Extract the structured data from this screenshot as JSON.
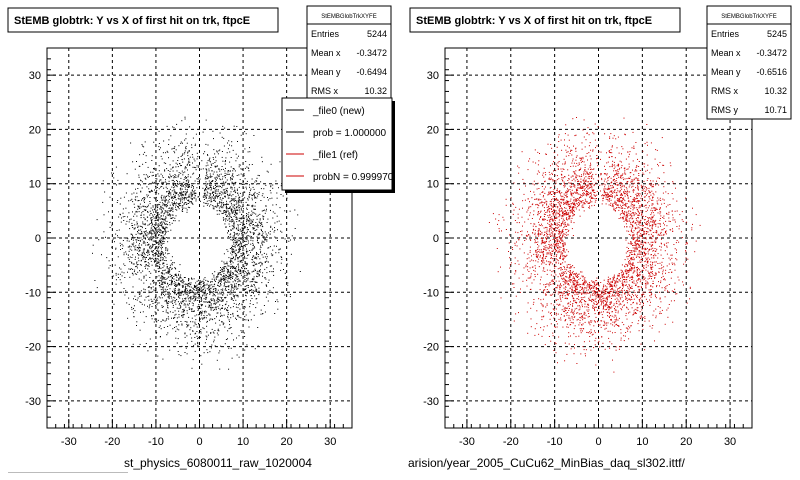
{
  "chart_data": [
    {
      "type": "scatter",
      "title": "StEMB globtrk: Y vs X of first hit on trk, ftpcE",
      "stats": {
        "header": "StEMBGlobTrkXYFE",
        "rows": [
          {
            "label": "Entries",
            "value": "5244"
          },
          {
            "label": "Mean x",
            "value": "-0.3472"
          },
          {
            "label": "Mean y",
            "value": "-0.6494"
          },
          {
            "label": "RMS x",
            "value": "10.32"
          },
          {
            "label": "RMS y",
            "value": "10.71"
          }
        ]
      },
      "legend": [
        {
          "label": "_file0 (new)",
          "color": "#000000"
        },
        {
          "label": "prob = 1.000000",
          "color": "#000000"
        },
        {
          "label": "_file1 (ref)",
          "color": "#cc0000"
        },
        {
          "label": "probN = 0.999970",
          "color": "#cc0000"
        }
      ],
      "xlim": [
        -35,
        35
      ],
      "ylim": [
        -35,
        35
      ],
      "xticks": [
        -30,
        -20,
        -10,
        0,
        10,
        20,
        30
      ],
      "yticks": [
        -30,
        -20,
        -10,
        0,
        10,
        20,
        30
      ],
      "grid": true,
      "marker_color": "#000000",
      "footer": "st_physics_6080011_raw_1020004"
    },
    {
      "type": "scatter",
      "title": "StEMB globtrk: Y vs X of first hit on trk, ftpcE",
      "stats": {
        "header": "StEMBGlobTrkXYFE",
        "rows": [
          {
            "label": "Entries",
            "value": "5245"
          },
          {
            "label": "Mean x",
            "value": "-0.3472"
          },
          {
            "label": "Mean y",
            "value": "-0.6516"
          },
          {
            "label": "RMS x",
            "value": "10.32"
          },
          {
            "label": "RMS y",
            "value": "10.71"
          }
        ]
      },
      "xlim": [
        -35,
        35
      ],
      "ylim": [
        -35,
        35
      ],
      "xticks": [
        -30,
        -20,
        -10,
        0,
        10,
        20,
        30
      ],
      "yticks": [
        -30,
        -20,
        -10,
        0,
        10,
        20,
        30
      ],
      "grid": true,
      "marker_color": "#cc0000",
      "footer": "arision/year_2005_CuCu62_MinBias_daq_sl302.ittf/"
    }
  ]
}
